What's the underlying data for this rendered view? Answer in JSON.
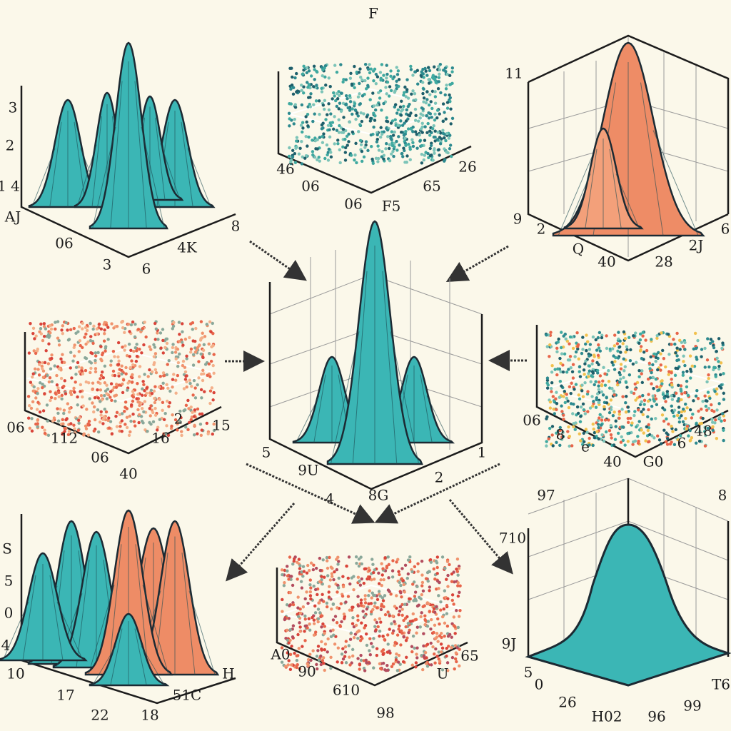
{
  "panels": [
    {
      "labels": [
        "3",
        "2",
        "1 4",
        "AJ",
        "06",
        "3",
        "6",
        "4K",
        "8"
      ]
    },
    {
      "labels": [
        "F",
        "46",
        "06",
        "06",
        "F5",
        "65",
        "26"
      ]
    },
    {
      "labels": [
        "11",
        "9",
        "2",
        "Q",
        "40",
        "28",
        "2J",
        "6"
      ]
    },
    {
      "labels": [
        "06",
        "112",
        "06",
        "16",
        "2",
        "15",
        "40"
      ]
    },
    {
      "labels": [
        "5",
        "9U",
        "4",
        "8G",
        "2",
        "1"
      ]
    },
    {
      "labels": [
        "06",
        "8",
        "e",
        "40",
        "G0",
        "48",
        "6"
      ]
    },
    {
      "labels": [
        "S",
        "5",
        "0",
        "4",
        "10",
        "17",
        "22",
        "18",
        "51C",
        "H"
      ]
    },
    {
      "labels": [
        "A0",
        "90",
        "610",
        "98",
        "U",
        "65"
      ]
    },
    {
      "labels": [
        "97",
        "8",
        "710",
        "9J",
        "5",
        "0",
        "26",
        "H02",
        "96",
        "99",
        "T6"
      ]
    }
  ]
}
